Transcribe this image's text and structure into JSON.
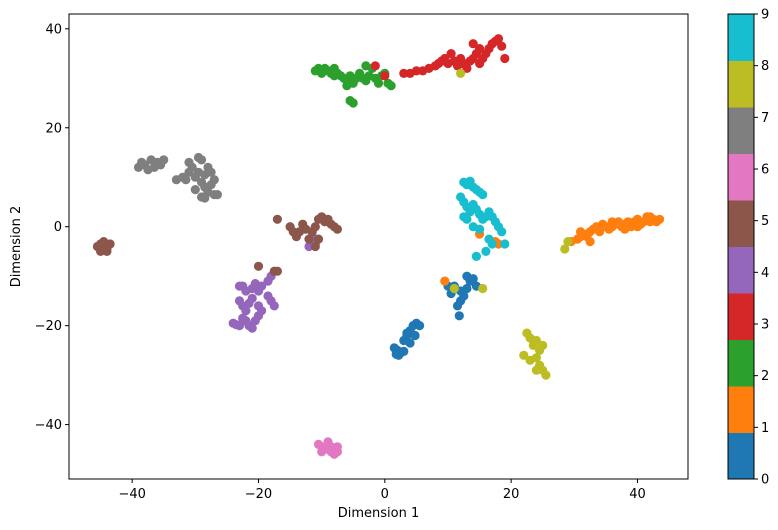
{
  "chart_data": {
    "type": "scatter",
    "xlabel": "Dimension 1",
    "ylabel": "Dimension 2",
    "xlim": [
      -50,
      48
    ],
    "ylim": [
      -51,
      43
    ],
    "xticks": [
      -40,
      -20,
      0,
      20,
      40
    ],
    "yticks": [
      -40,
      -20,
      0,
      20,
      40
    ],
    "xtick_labels": [
      "−40",
      "−20",
      "0",
      "20",
      "40"
    ],
    "ytick_labels": [
      "−40",
      "−20",
      "0",
      "20",
      "40"
    ],
    "grid": false,
    "colorbar": {
      "cmap": "tab10",
      "range": [
        0,
        9
      ],
      "ticks": [
        0,
        1,
        2,
        3,
        4,
        5,
        6,
        7,
        8,
        9
      ],
      "tick_labels": [
        "0",
        "1",
        "2",
        "3",
        "4",
        "5",
        "6",
        "7",
        "8",
        "9"
      ],
      "colors": [
        "#1f77b4",
        "#ff7f0e",
        "#2ca02c",
        "#d62728",
        "#9467bd",
        "#8c564b",
        "#e377c2",
        "#7f7f7f",
        "#bcbd22",
        "#17becf"
      ]
    },
    "clusters": [
      {
        "label": 0,
        "points": [
          [
            1.5,
            -24.5
          ],
          [
            2,
            -25
          ],
          [
            2.5,
            -25.5
          ],
          [
            3,
            -25.2
          ],
          [
            2.2,
            -26
          ],
          [
            1.8,
            -25.8
          ],
          [
            3,
            -23
          ],
          [
            3.5,
            -22
          ],
          [
            4,
            -21
          ],
          [
            4.5,
            -20
          ],
          [
            5,
            -19.5
          ],
          [
            5.5,
            -20
          ],
          [
            4.8,
            -22
          ],
          [
            4,
            -23.5
          ],
          [
            3.5,
            -21.5
          ],
          [
            11,
            -12
          ],
          [
            12,
            -13
          ],
          [
            12.5,
            -14
          ],
          [
            13,
            -12.5
          ],
          [
            13.5,
            -11
          ],
          [
            12,
            -15
          ],
          [
            11.5,
            -16
          ],
          [
            11.8,
            -18
          ],
          [
            13,
            -10
          ],
          [
            14,
            -10.5
          ],
          [
            14.5,
            -12
          ],
          [
            10.5,
            -13.5
          ],
          [
            10,
            -12
          ]
        ]
      },
      {
        "label": 1,
        "points": [
          [
            29.5,
            -3
          ],
          [
            30.5,
            -2.5
          ],
          [
            31,
            -2
          ],
          [
            31.5,
            -1.5
          ],
          [
            32,
            -2
          ],
          [
            32.5,
            -1
          ],
          [
            33,
            -0.5
          ],
          [
            33.5,
            0
          ],
          [
            34,
            -1
          ],
          [
            34.5,
            0.5
          ],
          [
            35,
            0
          ],
          [
            35.5,
            -0.5
          ],
          [
            36,
            0
          ],
          [
            36.5,
            0.5
          ],
          [
            37,
            1
          ],
          [
            37.5,
            0
          ],
          [
            38,
            0.5
          ],
          [
            38.5,
            1
          ],
          [
            39,
            0
          ],
          [
            39.5,
            1
          ],
          [
            40,
            1.5
          ],
          [
            40.5,
            0.5
          ],
          [
            41,
            1
          ],
          [
            41.5,
            2
          ],
          [
            42,
            1
          ],
          [
            42.5,
            1.5
          ],
          [
            43,
            1
          ],
          [
            43.5,
            1.5
          ],
          [
            31,
            -1
          ],
          [
            32.5,
            -3
          ],
          [
            34,
            -0.2
          ],
          [
            36,
            1
          ],
          [
            38,
            -0.5
          ],
          [
            40,
            0
          ],
          [
            42,
            2
          ],
          [
            9.5,
            -11
          ],
          [
            15,
            -1.5
          ],
          [
            18,
            -3.5
          ],
          [
            17.5,
            -3
          ]
        ]
      },
      {
        "label": 2,
        "points": [
          [
            -11,
            31.5
          ],
          [
            -10,
            31
          ],
          [
            -9.5,
            32
          ],
          [
            -9,
            31.5
          ],
          [
            -8.5,
            31
          ],
          [
            -8,
            30.5
          ],
          [
            -7.5,
            31
          ],
          [
            -7,
            30.5
          ],
          [
            -6.5,
            30
          ],
          [
            -6,
            29.5
          ],
          [
            -5.5,
            30.5
          ],
          [
            -5,
            29
          ],
          [
            -4.5,
            30
          ],
          [
            -4,
            31
          ],
          [
            -3.5,
            30
          ],
          [
            -3,
            29.5
          ],
          [
            -2.5,
            30.5
          ],
          [
            -2,
            32
          ],
          [
            -1.5,
            30
          ],
          [
            -1,
            29
          ],
          [
            -0.5,
            30.5
          ],
          [
            0,
            31
          ],
          [
            0.5,
            29
          ],
          [
            1,
            28.5
          ],
          [
            -3,
            32.5
          ],
          [
            -6,
            28.5
          ],
          [
            -5.5,
            25.5
          ],
          [
            -5,
            25
          ],
          [
            -8,
            32
          ],
          [
            -10.5,
            32
          ]
        ]
      },
      {
        "label": 3,
        "points": [
          [
            -1.5,
            32.5
          ],
          [
            0,
            30.5
          ],
          [
            3,
            31
          ],
          [
            4,
            31
          ],
          [
            5,
            31.5
          ],
          [
            6,
            31.5
          ],
          [
            7,
            32
          ],
          [
            8,
            32.5
          ],
          [
            8.5,
            33
          ],
          [
            9,
            33.5
          ],
          [
            9.5,
            34
          ],
          [
            10,
            33
          ],
          [
            10.5,
            35
          ],
          [
            11,
            33.5
          ],
          [
            11.5,
            32.5
          ],
          [
            12,
            34
          ],
          [
            12.5,
            33
          ],
          [
            13,
            32
          ],
          [
            13.5,
            33.5
          ],
          [
            14,
            34
          ],
          [
            14.5,
            35
          ],
          [
            15,
            33
          ],
          [
            15.5,
            34
          ],
          [
            16,
            35
          ],
          [
            16.5,
            36
          ],
          [
            17,
            37
          ],
          [
            17.5,
            37.5
          ],
          [
            18,
            38
          ],
          [
            18.5,
            36.5
          ],
          [
            15,
            36
          ],
          [
            14,
            37
          ],
          [
            19,
            34
          ],
          [
            12,
            33
          ]
        ]
      },
      {
        "label": 4,
        "points": [
          [
            -24,
            -19.5
          ],
          [
            -23.5,
            -19.8
          ],
          [
            -23,
            -20
          ],
          [
            -22.5,
            -18.5
          ],
          [
            -22,
            -19
          ],
          [
            -21.5,
            -20
          ],
          [
            -21,
            -20.5
          ],
          [
            -20.5,
            -19
          ],
          [
            -20,
            -18
          ],
          [
            -19.5,
            -17
          ],
          [
            -22,
            -17
          ],
          [
            -22.5,
            -16
          ],
          [
            -21.5,
            -15.5
          ],
          [
            -21,
            -14.5
          ],
          [
            -22,
            -13
          ],
          [
            -22.5,
            -12
          ],
          [
            -21,
            -12.5
          ],
          [
            -20,
            -13
          ],
          [
            -19.5,
            -12
          ],
          [
            -20.5,
            -11.5
          ],
          [
            -18.5,
            -14
          ],
          [
            -18,
            -15
          ],
          [
            -17.5,
            -16
          ],
          [
            -18.5,
            -11
          ],
          [
            -18,
            -10
          ],
          [
            -23,
            -15
          ],
          [
            -23,
            -12
          ],
          [
            -20,
            -16
          ],
          [
            -11,
            -3.5
          ],
          [
            -11.5,
            -2
          ],
          [
            -12,
            -4
          ]
        ]
      },
      {
        "label": 5,
        "points": [
          [
            -45,
            -3.5
          ],
          [
            -44.5,
            -4
          ],
          [
            -44,
            -4.5
          ],
          [
            -45.5,
            -4
          ],
          [
            -44.5,
            -3
          ],
          [
            -44,
            -5
          ],
          [
            -43.5,
            -3.5
          ],
          [
            -45,
            -5
          ],
          [
            -15,
            0
          ],
          [
            -14.5,
            -1
          ],
          [
            -14,
            -2
          ],
          [
            -13.5,
            -1
          ],
          [
            -13,
            0.5
          ],
          [
            -12.5,
            -0.5
          ],
          [
            -12,
            -2.5
          ],
          [
            -11.5,
            -1
          ],
          [
            -11,
            0
          ],
          [
            -10.5,
            1.5
          ],
          [
            -10,
            2
          ],
          [
            -9.5,
            1
          ],
          [
            -9,
            1.5
          ],
          [
            -8.5,
            0.5
          ],
          [
            -8,
            0
          ],
          [
            -7.5,
            -0.5
          ],
          [
            -10.5,
            -2.5
          ],
          [
            -11,
            -4
          ],
          [
            -20,
            -8
          ],
          [
            -17.5,
            -9
          ],
          [
            -17,
            -9
          ],
          [
            -17,
            1.5
          ]
        ]
      },
      {
        "label": 6,
        "points": [
          [
            -10.5,
            -44
          ],
          [
            -10,
            -44.5
          ],
          [
            -9.5,
            -45
          ],
          [
            -9,
            -44
          ],
          [
            -8.5,
            -44.5
          ],
          [
            -8,
            -45
          ],
          [
            -7.5,
            -45.5
          ],
          [
            -8,
            -46
          ],
          [
            -9,
            -43.5
          ],
          [
            -8.5,
            -45.5
          ],
          [
            -10,
            -45.5
          ],
          [
            -7.5,
            -44.5
          ]
        ]
      },
      {
        "label": 7,
        "points": [
          [
            -39,
            12
          ],
          [
            -38.5,
            13
          ],
          [
            -38,
            12.5
          ],
          [
            -37.5,
            11.5
          ],
          [
            -37,
            13.5
          ],
          [
            -36.5,
            12
          ],
          [
            -36,
            13
          ],
          [
            -35.5,
            12.5
          ],
          [
            -35,
            13.5
          ],
          [
            -32,
            10
          ],
          [
            -31.5,
            9.5
          ],
          [
            -31,
            11
          ],
          [
            -30.5,
            12
          ],
          [
            -30,
            10
          ],
          [
            -29.5,
            11
          ],
          [
            -29,
            9
          ],
          [
            -28.5,
            10.5
          ],
          [
            -28,
            12
          ],
          [
            -27.5,
            11
          ],
          [
            -27,
            9.5
          ],
          [
            -29.5,
            14
          ],
          [
            -29,
            13.5
          ],
          [
            -28.5,
            8
          ],
          [
            -28,
            7
          ],
          [
            -27.5,
            8.5
          ],
          [
            -27,
            6.5
          ],
          [
            -31,
            13
          ],
          [
            -33,
            9.5
          ],
          [
            -30,
            7.5
          ],
          [
            -29,
            6
          ],
          [
            -28.5,
            5.8
          ],
          [
            -26.5,
            6.5
          ]
        ]
      },
      {
        "label": 8,
        "points": [
          [
            22,
            -26
          ],
          [
            22.5,
            -21.5
          ],
          [
            23,
            -22.5
          ],
          [
            23.5,
            -24
          ],
          [
            24,
            -23
          ],
          [
            24.5,
            -25
          ],
          [
            25,
            -24
          ],
          [
            24,
            -26.5
          ],
          [
            24.5,
            -28
          ],
          [
            25,
            -29
          ],
          [
            25.5,
            -30
          ],
          [
            24,
            -29
          ],
          [
            23,
            -27
          ],
          [
            28.5,
            -4.5
          ],
          [
            29,
            -3
          ],
          [
            12,
            31
          ],
          [
            11,
            -12.5
          ],
          [
            15.5,
            -12.5
          ]
        ]
      },
      {
        "label": 9,
        "points": [
          [
            12.5,
            9
          ],
          [
            13,
            8.5
          ],
          [
            13.5,
            9.2
          ],
          [
            14,
            8
          ],
          [
            14.5,
            7.5
          ],
          [
            15,
            7
          ],
          [
            15.5,
            6.5
          ],
          [
            12,
            6
          ],
          [
            12.5,
            5
          ],
          [
            13,
            4
          ],
          [
            13.5,
            3
          ],
          [
            14,
            4.5
          ],
          [
            14.5,
            3.5
          ],
          [
            15,
            2.5
          ],
          [
            15.5,
            1.5
          ],
          [
            16,
            2
          ],
          [
            16.5,
            3
          ],
          [
            17,
            2
          ],
          [
            17.5,
            1
          ],
          [
            18,
            0
          ],
          [
            18.5,
            -1
          ],
          [
            19,
            -3.5
          ],
          [
            16.5,
            -2.5
          ],
          [
            13,
            1.5
          ],
          [
            12.5,
            2
          ],
          [
            14,
            0
          ],
          [
            15,
            -0.5
          ],
          [
            14.5,
            -6
          ],
          [
            16,
            -5
          ],
          [
            17,
            -3.5
          ]
        ]
      }
    ]
  }
}
